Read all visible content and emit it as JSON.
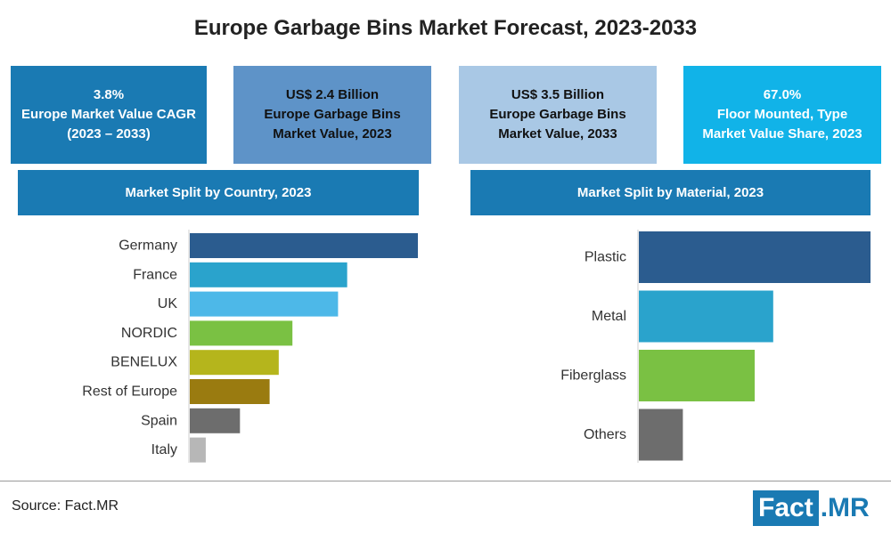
{
  "title": "Europe Garbage Bins Market Forecast, 2023-2033",
  "kpis": [
    {
      "text": "3.8%\nEurope Market Value CAGR\n(2023 – 2033)"
    },
    {
      "text": "US$ 2.4 Billion\nEurope Garbage Bins\nMarket Value, 2023"
    },
    {
      "text": "US$ 3.5 Billion\nEurope Garbage Bins\nMarket Value, 2033"
    },
    {
      "text": "67.0%\nFloor Mounted, Type\nMarket Value Share, 2023"
    }
  ],
  "colors": {
    "header_blue": "#1a7ab3",
    "kpi2": "#5e93c8",
    "kpi3": "#a9c8e5",
    "kpi4": "#11b3e8"
  },
  "source": "Source: Fact.MR",
  "logo": {
    "fact": "Fact",
    "mr": ".MR"
  },
  "chart_data": [
    {
      "type": "bar",
      "orientation": "horizontal",
      "title": "Market Split by Country, 2023",
      "categories": [
        "Germany",
        "France",
        "UK",
        "NORDIC",
        "BENELUX",
        "Rest of Europe",
        "Spain",
        "Italy"
      ],
      "values": [
        100,
        69,
        65,
        45,
        39,
        35,
        22,
        7
      ],
      "colors": [
        "#2b5c8f",
        "#2aa3cc",
        "#4db8e8",
        "#7ac143",
        "#b5b51c",
        "#9a7b10",
        "#6d6d6d",
        "#b7b7b7"
      ],
      "xlim": [
        0,
        100
      ],
      "grid": false,
      "legend": "none"
    },
    {
      "type": "bar",
      "orientation": "horizontal",
      "title": "Market Split by Material, 2023",
      "categories": [
        "Plastic",
        "Metal",
        "Fiberglass",
        "Others"
      ],
      "values": [
        100,
        58,
        50,
        19
      ],
      "colors": [
        "#2b5c8f",
        "#2aa3cc",
        "#7ac143",
        "#6d6d6d"
      ],
      "xlim": [
        0,
        100
      ],
      "grid": false,
      "legend": "none"
    }
  ]
}
